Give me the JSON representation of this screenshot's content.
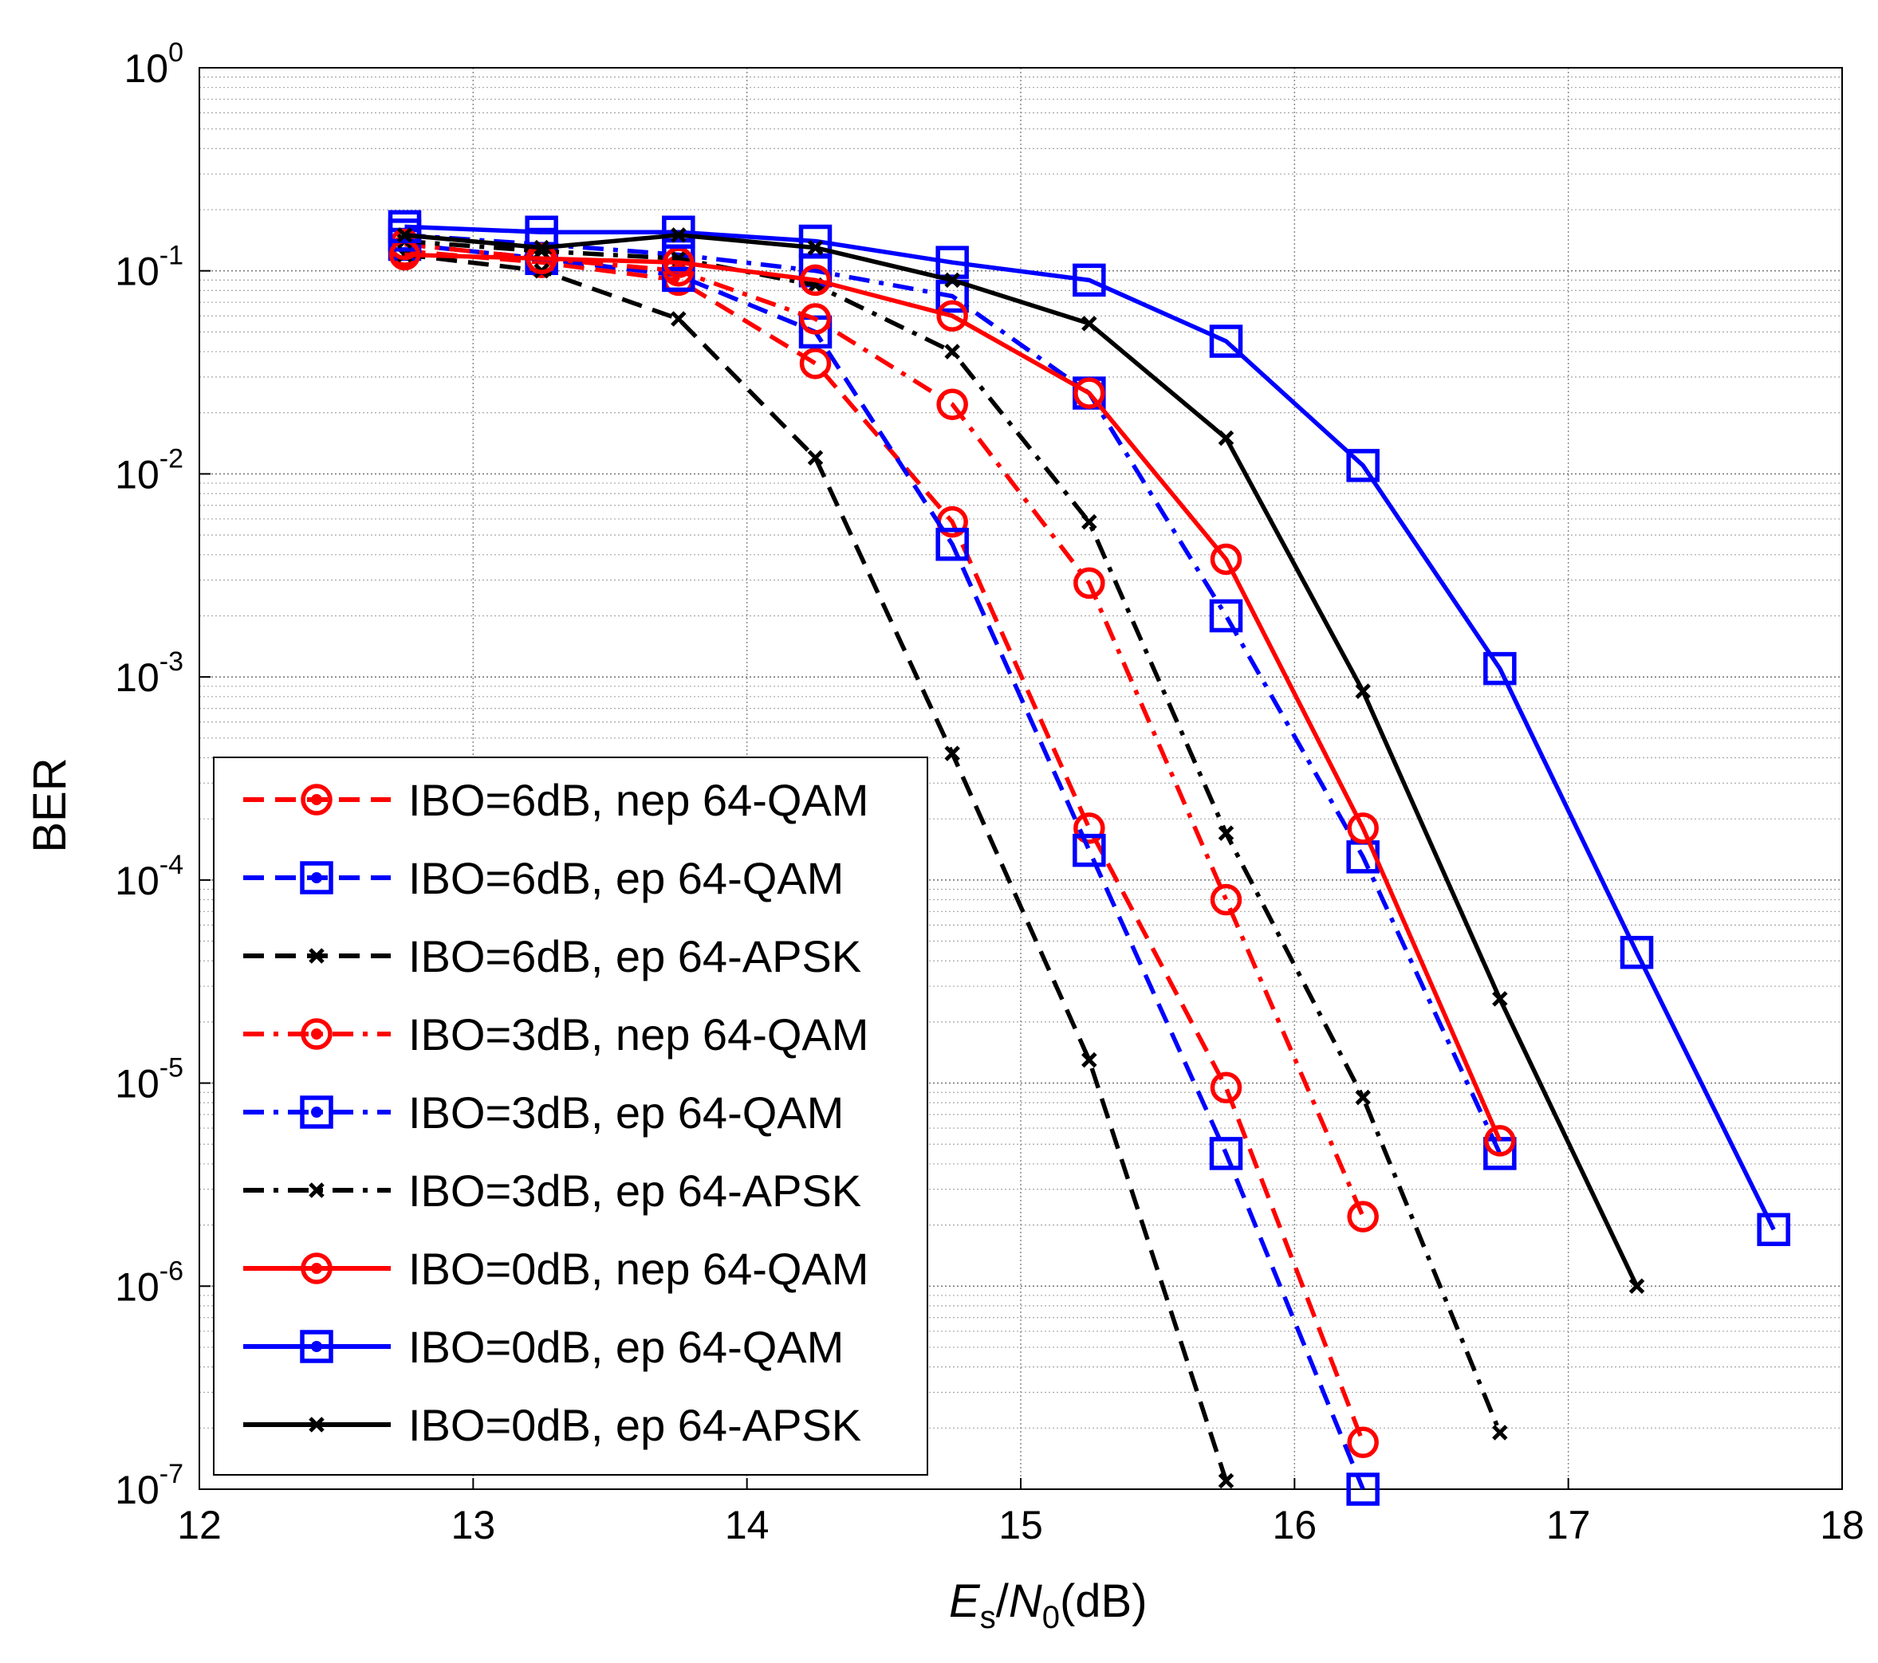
{
  "chart_data": {
    "type": "line",
    "title": "",
    "xlabel": "E_s/N_0(dB)",
    "ylabel": "BER",
    "xlabel_parts": {
      "E": "E",
      "s": "s",
      "slash": "/",
      "N": "N",
      "zero": "0",
      "unit": "(dB)"
    },
    "xlim": [
      12,
      18
    ],
    "ylim": [
      1e-07,
      1
    ],
    "yscale": "log",
    "grid": true,
    "legend_position": "lower-left",
    "x_ticks": [
      {
        "value": 12,
        "label": "12"
      },
      {
        "value": 13,
        "label": "13"
      },
      {
        "value": 14,
        "label": "14"
      },
      {
        "value": 15,
        "label": "15"
      },
      {
        "value": 16,
        "label": "16"
      },
      {
        "value": 17,
        "label": "17"
      },
      {
        "value": 18,
        "label": "18"
      }
    ],
    "y_ticks": [
      {
        "exp": 0,
        "base": "10",
        "power": "0"
      },
      {
        "exp": -1,
        "base": "10",
        "power": "-1"
      },
      {
        "exp": -2,
        "base": "10",
        "power": "-2"
      },
      {
        "exp": -3,
        "base": "10",
        "power": "-3"
      },
      {
        "exp": -4,
        "base": "10",
        "power": "-4"
      },
      {
        "exp": -5,
        "base": "10",
        "power": "-5"
      },
      {
        "exp": -6,
        "base": "10",
        "power": "-6"
      },
      {
        "exp": -7,
        "base": "10",
        "power": "-7"
      }
    ],
    "series": [
      {
        "name": "IBO=6dB, nep 64-QAM",
        "color": "#ff0000",
        "dash": "dashed",
        "marker": "circle",
        "x": [
          12.75,
          13.25,
          13.75,
          14.25,
          14.75,
          15.25,
          15.75,
          16.25
        ],
        "y": [
          0.125,
          0.11,
          0.09,
          0.035,
          0.0058,
          0.00018,
          9.5e-06,
          1.7e-07
        ]
      },
      {
        "name": "IBO=6dB, ep 64-QAM",
        "color": "#0000ff",
        "dash": "dashed",
        "marker": "square",
        "x": [
          12.75,
          13.25,
          13.75,
          14.25,
          14.75,
          15.25,
          15.75,
          16.25
        ],
        "y": [
          0.135,
          0.115,
          0.095,
          0.05,
          0.0045,
          0.00014,
          4.5e-06,
          1e-07
        ]
      },
      {
        "name": "IBO=6dB, ep 64-APSK",
        "color": "#000000",
        "dash": "dashed",
        "marker": "x",
        "x": [
          12.75,
          13.25,
          13.75,
          14.25,
          14.75,
          15.25,
          15.75
        ],
        "y": [
          0.12,
          0.1,
          0.058,
          0.012,
          0.00042,
          1.3e-05,
          1.1e-07
        ]
      },
      {
        "name": "IBO=3dB, nep 64-QAM",
        "color": "#ff0000",
        "dash": "dashdot",
        "marker": "circle",
        "x": [
          12.75,
          13.25,
          13.75,
          14.25,
          14.75,
          15.25,
          15.75,
          16.25
        ],
        "y": [
          0.135,
          0.115,
          0.1,
          0.058,
          0.022,
          0.0029,
          8e-05,
          2.2e-06
        ]
      },
      {
        "name": "IBO=3dB, ep 64-QAM",
        "color": "#0000ff",
        "dash": "dashdot",
        "marker": "square",
        "x": [
          12.75,
          13.25,
          13.75,
          14.25,
          14.75,
          15.25,
          15.75,
          16.25,
          16.75
        ],
        "y": [
          0.15,
          0.135,
          0.12,
          0.1,
          0.075,
          0.025,
          0.002,
          0.00013,
          4.5e-06
        ]
      },
      {
        "name": "IBO=3dB, ep 64-APSK",
        "color": "#000000",
        "dash": "dashdot",
        "marker": "x",
        "x": [
          12.75,
          13.25,
          13.75,
          14.25,
          14.75,
          15.25,
          15.75,
          16.25,
          16.75
        ],
        "y": [
          0.14,
          0.125,
          0.115,
          0.085,
          0.04,
          0.0058,
          0.00017,
          8.5e-06,
          1.9e-07
        ]
      },
      {
        "name": "IBO=0dB, nep 64-QAM",
        "color": "#ff0000",
        "dash": "solid",
        "marker": "circle",
        "x": [
          12.75,
          13.25,
          13.75,
          14.25,
          14.75,
          15.25,
          15.75,
          16.25,
          16.75
        ],
        "y": [
          0.12,
          0.115,
          0.11,
          0.09,
          0.06,
          0.025,
          0.0038,
          0.00018,
          5.2e-06
        ]
      },
      {
        "name": "IBO=0dB, ep 64-QAM",
        "color": "#0000ff",
        "dash": "solid",
        "marker": "square",
        "x": [
          12.75,
          13.25,
          13.75,
          14.25,
          14.75,
          15.25,
          15.75,
          16.25,
          16.75,
          17.25,
          17.75
        ],
        "y": [
          0.165,
          0.155,
          0.155,
          0.14,
          0.11,
          0.09,
          0.045,
          0.011,
          0.0011,
          4.4e-05,
          1.9e-06
        ]
      },
      {
        "name": "IBO=0dB, ep 64-APSK",
        "color": "#000000",
        "dash": "solid",
        "marker": "x",
        "x": [
          12.75,
          13.25,
          13.75,
          14.25,
          14.75,
          15.25,
          15.75,
          16.25,
          16.75,
          17.25
        ],
        "y": [
          0.15,
          0.13,
          0.15,
          0.13,
          0.09,
          0.055,
          0.015,
          0.00085,
          2.6e-05,
          1e-06
        ]
      }
    ]
  }
}
